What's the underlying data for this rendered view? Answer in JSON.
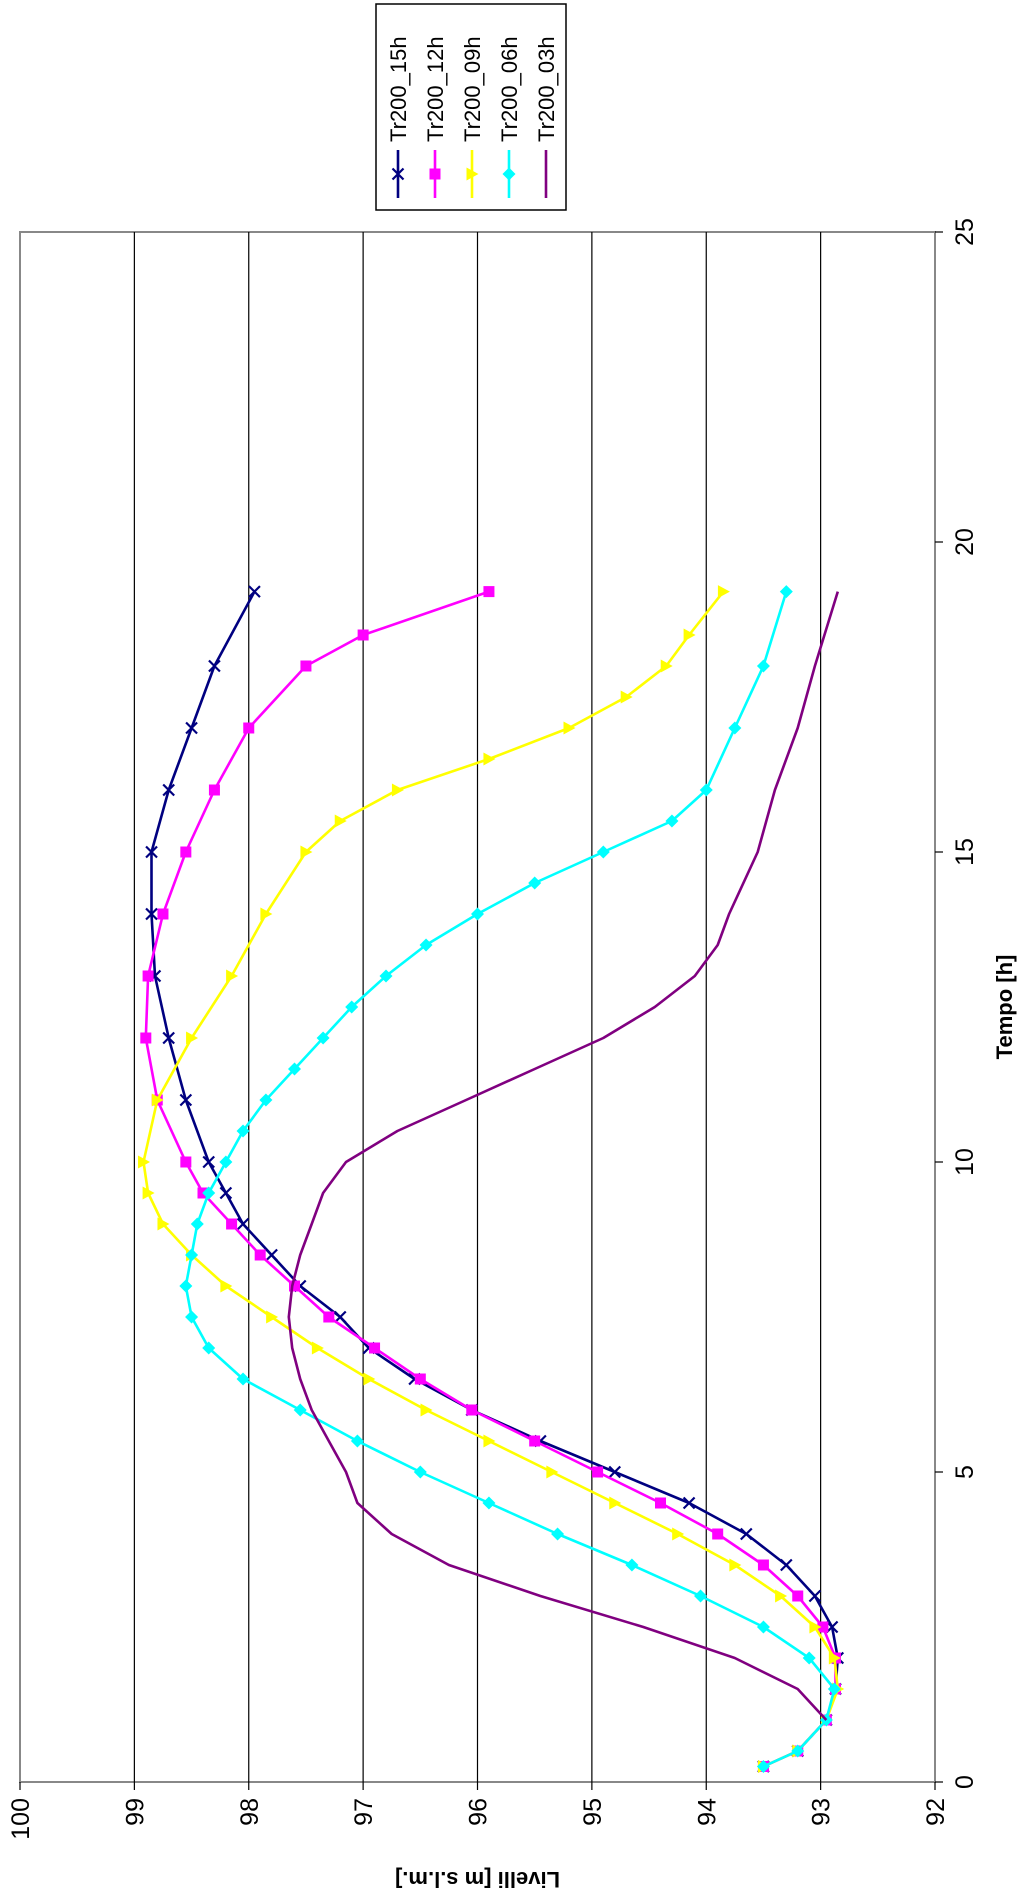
{
  "chart_data": {
    "type": "line",
    "xlabel": "Tempo [h]",
    "ylabel": "Livelli [m s.l.m.]",
    "xlim": [
      0,
      25
    ],
    "ylim": [
      92,
      100
    ],
    "x_ticks": [
      "0",
      "5",
      "10",
      "15",
      "20",
      "25"
    ],
    "y_ticks": [
      "92",
      "93",
      "94",
      "95",
      "96",
      "97",
      "98",
      "99",
      "100"
    ],
    "grid": "horizontal",
    "legend_position": "top-right",
    "orientation": "rotated 90° clockwise (x axis vertical, y axis horizontal)",
    "series": [
      {
        "name": "Tr200_15h",
        "color": "#000080",
        "marker": "x",
        "x": [
          0.25,
          0.5,
          1,
          1.5,
          2,
          2.5,
          3,
          3.5,
          4,
          4.5,
          5,
          5.5,
          6,
          6.5,
          7,
          7.5,
          8,
          8.5,
          9,
          9.5,
          10,
          11,
          12,
          13,
          14,
          15,
          16,
          17,
          18,
          19.2
        ],
        "y": [
          93.5,
          93.2,
          92.95,
          92.87,
          92.85,
          92.9,
          93.05,
          93.3,
          93.65,
          94.15,
          94.8,
          95.45,
          96.05,
          96.55,
          96.95,
          97.2,
          97.55,
          97.8,
          98.05,
          98.2,
          98.35,
          98.55,
          98.7,
          98.82,
          98.85,
          98.85,
          98.7,
          98.5,
          98.3,
          97.95
        ]
      },
      {
        "name": "Tr200_12h",
        "color": "#ff00ff",
        "marker": "square",
        "x": [
          0.25,
          0.5,
          1,
          1.5,
          2,
          2.5,
          3,
          3.5,
          4,
          4.5,
          5,
          5.5,
          6,
          6.5,
          7,
          7.5,
          8,
          8.5,
          9,
          9.5,
          10,
          11,
          12,
          13,
          14,
          15,
          16,
          17,
          18,
          18.5,
          19.2
        ],
        "y": [
          93.5,
          93.2,
          92.95,
          92.87,
          92.87,
          92.98,
          93.2,
          93.5,
          93.9,
          94.4,
          94.95,
          95.5,
          96.05,
          96.5,
          96.9,
          97.3,
          97.6,
          97.9,
          98.15,
          98.4,
          98.55,
          98.8,
          98.9,
          98.88,
          98.75,
          98.55,
          98.3,
          98.0,
          97.5,
          97.0,
          95.9
        ]
      },
      {
        "name": "Tr200_09h",
        "color": "#ffff00",
        "marker": "triangle",
        "x": [
          0.25,
          0.5,
          1,
          1.5,
          2,
          2.5,
          3,
          3.5,
          4,
          4.5,
          5,
          5.5,
          6,
          6.5,
          7,
          7.5,
          8,
          8.5,
          9,
          9.5,
          10,
          11,
          12,
          13,
          14,
          15,
          15.5,
          16,
          16.5,
          17,
          17.5,
          18,
          18.5,
          19.2
        ],
        "y": [
          93.5,
          93.2,
          92.95,
          92.85,
          92.88,
          93.05,
          93.35,
          93.75,
          94.25,
          94.8,
          95.35,
          95.9,
          96.45,
          96.95,
          97.4,
          97.8,
          98.2,
          98.5,
          98.75,
          98.88,
          98.92,
          98.8,
          98.5,
          98.15,
          97.85,
          97.5,
          97.2,
          96.7,
          95.9,
          95.2,
          94.7,
          94.35,
          94.15,
          93.85
        ]
      },
      {
        "name": "Tr200_06h",
        "color": "#00ffff",
        "marker": "diamond",
        "x": [
          0.25,
          0.5,
          1,
          1.5,
          2,
          2.5,
          3,
          3.5,
          4,
          4.5,
          5,
          5.5,
          6,
          6.5,
          7,
          7.5,
          8,
          8.5,
          9,
          9.5,
          10,
          10.5,
          11,
          11.5,
          12,
          12.5,
          13,
          13.5,
          14,
          14.5,
          15,
          15.5,
          16,
          17,
          18,
          19.2
        ],
        "y": [
          93.5,
          93.2,
          92.95,
          92.88,
          93.1,
          93.5,
          94.05,
          94.65,
          95.3,
          95.9,
          96.5,
          97.05,
          97.55,
          98.05,
          98.35,
          98.5,
          98.55,
          98.5,
          98.45,
          98.35,
          98.2,
          98.05,
          97.85,
          97.6,
          97.35,
          97.1,
          96.8,
          96.45,
          96.0,
          95.5,
          94.9,
          94.3,
          94.0,
          93.75,
          93.5,
          93.3
        ]
      },
      {
        "name": "Tr200_03h",
        "color": "#800080",
        "marker": "none",
        "x": [
          1,
          1.5,
          2,
          2.5,
          3,
          3.5,
          4,
          4.5,
          5,
          5.5,
          6,
          6.5,
          7,
          7.5,
          8,
          8.5,
          9,
          9.5,
          10,
          10.5,
          11,
          11.5,
          12,
          12.5,
          13,
          13.5,
          14,
          15,
          16,
          17,
          18,
          19.2
        ],
        "y": [
          92.95,
          93.2,
          93.75,
          94.55,
          95.45,
          96.25,
          96.75,
          97.05,
          97.15,
          97.3,
          97.45,
          97.55,
          97.62,
          97.65,
          97.62,
          97.55,
          97.45,
          97.35,
          97.15,
          96.7,
          96.1,
          95.5,
          94.9,
          94.45,
          94.1,
          93.9,
          93.8,
          93.55,
          93.4,
          93.2,
          93.05,
          92.85
        ]
      }
    ]
  }
}
